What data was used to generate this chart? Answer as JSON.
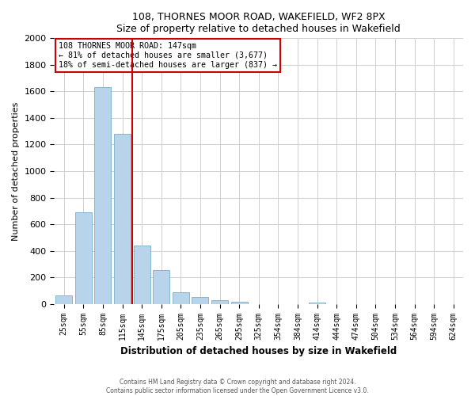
{
  "title": "108, THORNES MOOR ROAD, WAKEFIELD, WF2 8PX",
  "subtitle": "Size of property relative to detached houses in Wakefield",
  "xlabel": "Distribution of detached houses by size in Wakefield",
  "ylabel": "Number of detached properties",
  "bar_labels": [
    "25sqm",
    "55sqm",
    "85sqm",
    "115sqm",
    "145sqm",
    "175sqm",
    "205sqm",
    "235sqm",
    "265sqm",
    "295sqm",
    "325sqm",
    "354sqm",
    "384sqm",
    "414sqm",
    "444sqm",
    "474sqm",
    "504sqm",
    "534sqm",
    "564sqm",
    "594sqm",
    "624sqm"
  ],
  "bar_values": [
    65,
    690,
    1630,
    1280,
    440,
    255,
    90,
    52,
    30,
    18,
    0,
    0,
    0,
    12,
    0,
    0,
    0,
    0,
    0,
    0,
    0
  ],
  "bar_color": "#b8d4ea",
  "bar_edge_color": "#7aaec8",
  "vline_color": "#cc0000",
  "annotation_title": "108 THORNES MOOR ROAD: 147sqm",
  "annotation_line1": "← 81% of detached houses are smaller (3,677)",
  "annotation_line2": "18% of semi-detached houses are larger (837) →",
  "annotation_box_edge": "#cc0000",
  "ylim": [
    0,
    2000
  ],
  "yticks": [
    0,
    200,
    400,
    600,
    800,
    1000,
    1200,
    1400,
    1600,
    1800,
    2000
  ],
  "footer1": "Contains HM Land Registry data © Crown copyright and database right 2024.",
  "footer2": "Contains public sector information licensed under the Open Government Licence v3.0.",
  "bg_color": "#ffffff",
  "grid_color": "#d0d0d0"
}
